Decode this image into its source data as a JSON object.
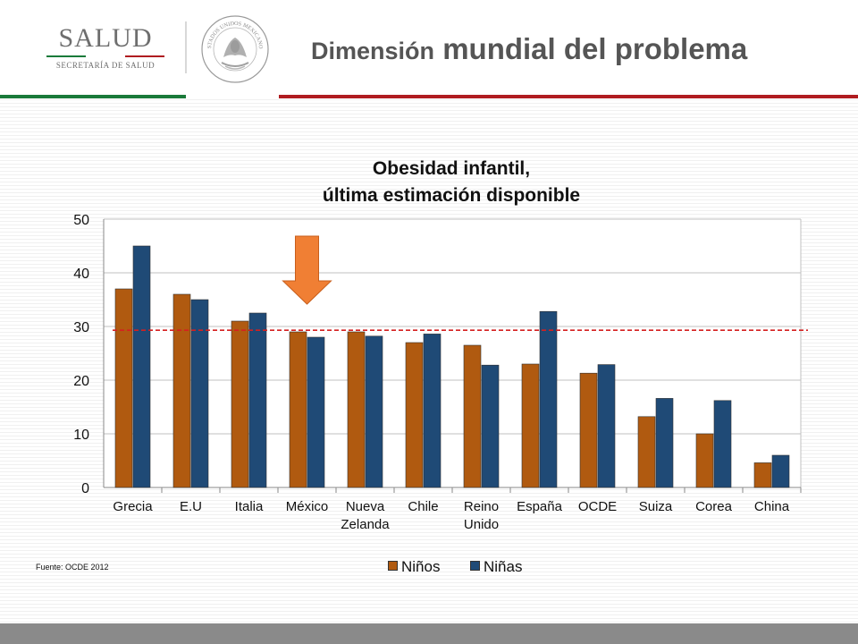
{
  "header": {
    "logo": {
      "word": "SALUD",
      "subtitle": "SECRETARÍA DE SALUD",
      "stripe_colors": [
        "#1a7a3a",
        "#ffffff",
        "#b01c20"
      ]
    },
    "seal_text": "ESTADOS UNIDOS MEXICANOS",
    "title_part1": "Dimensión",
    "title_part2": "mundial del problema"
  },
  "colors": {
    "accent_green": "#1a7a3a",
    "accent_red": "#b01c20",
    "ninos": "#b05a10",
    "ninas": "#1f4a76",
    "reference_line": "#d42020",
    "arrow": "#f07f34"
  },
  "chart_data": {
    "type": "bar",
    "title_line1": "Obesidad infantil,",
    "title_line2": "última estimación disponible",
    "categories": [
      [
        "Grecia"
      ],
      [
        "E.U"
      ],
      [
        "Italia"
      ],
      [
        "México"
      ],
      [
        "Nueva",
        "Zelanda"
      ],
      [
        "Chile"
      ],
      [
        "Reino",
        "Unido"
      ],
      [
        "España"
      ],
      [
        "OCDE"
      ],
      [
        "Suiza"
      ],
      [
        "Corea"
      ],
      [
        "China"
      ]
    ],
    "series": [
      {
        "name": "Niños",
        "values": [
          37,
          36,
          31,
          29,
          29,
          27,
          26.5,
          23,
          21.3,
          13.2,
          10,
          4.6
        ]
      },
      {
        "name": "Niñas",
        "values": [
          45,
          35,
          32.5,
          28,
          28.2,
          28.6,
          22.8,
          32.8,
          22.9,
          16.6,
          16.2,
          6
        ]
      }
    ],
    "ylim": [
      0,
      50
    ],
    "yticks": [
      0,
      10,
      20,
      30,
      40,
      50
    ],
    "grid": true,
    "reference_line": 29.3,
    "highlight_category": "México",
    "legend_position": "bottom-center"
  },
  "source": "Fuente: OCDE 2012"
}
